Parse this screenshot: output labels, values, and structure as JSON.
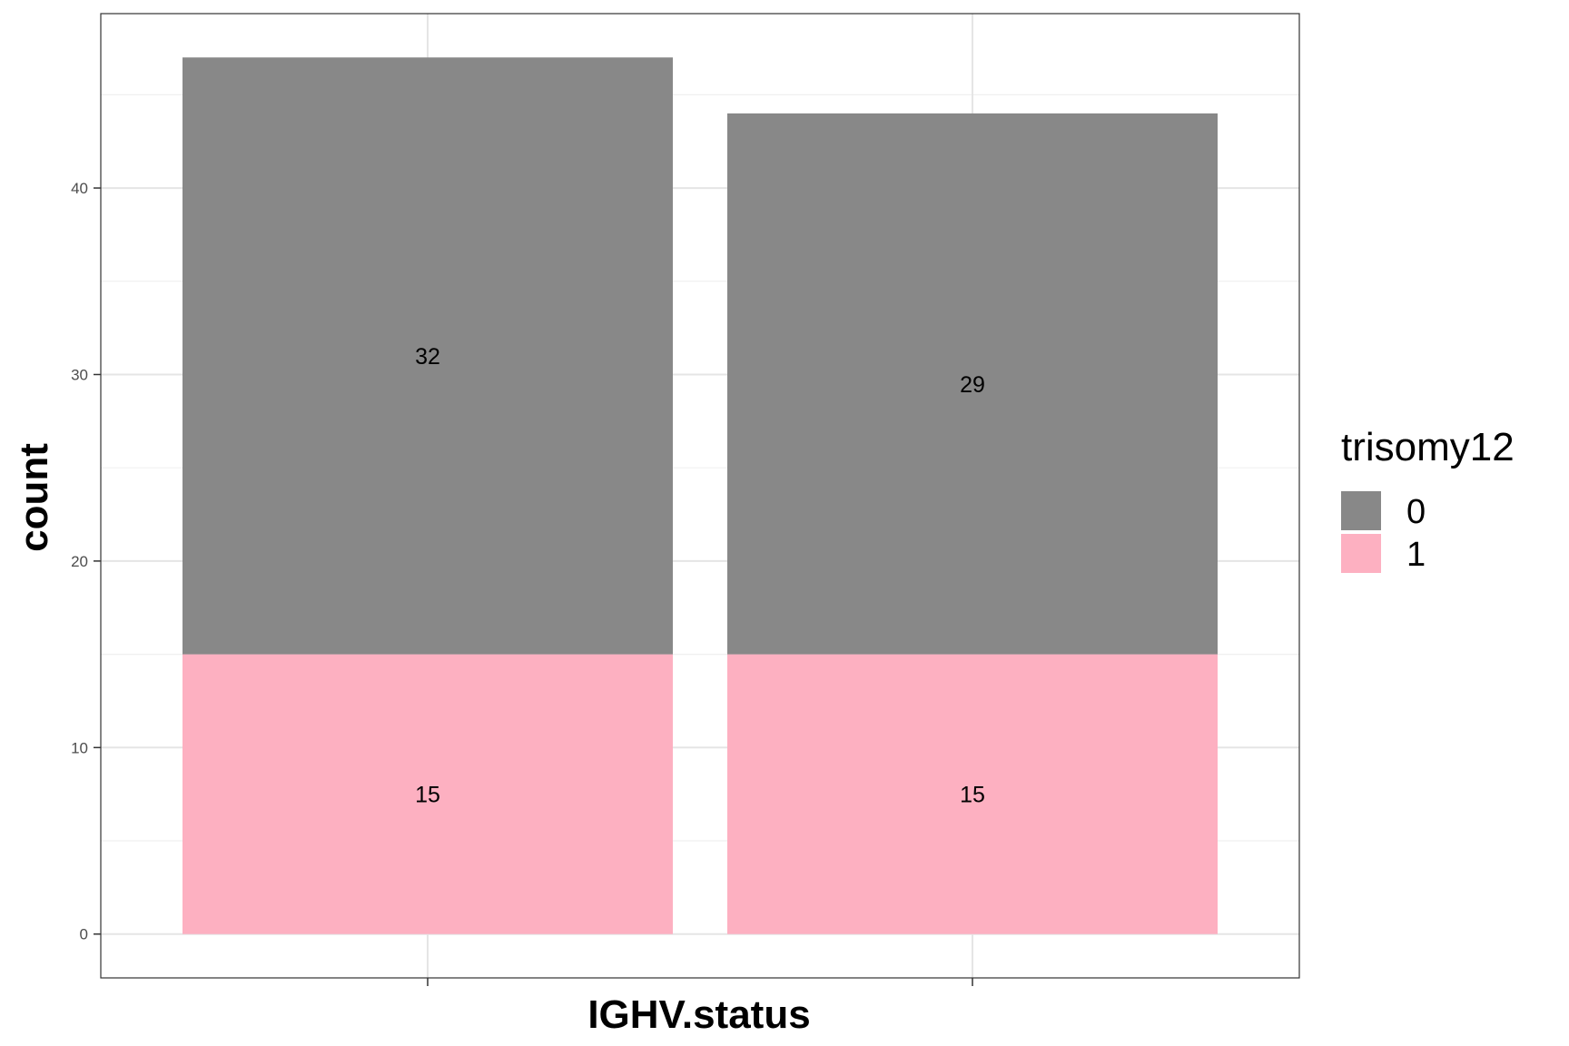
{
  "chart_data": {
    "type": "bar",
    "stacked": true,
    "categories": [
      "",
      ""
    ],
    "series": [
      {
        "name": "1",
        "values": [
          15,
          15
        ],
        "color": "#FDB0C1"
      },
      {
        "name": "0",
        "values": [
          32,
          29
        ],
        "color": "#888888"
      }
    ],
    "xlabel": "IGHV.status",
    "ylabel": "count",
    "ylim": [
      -2.35,
      49.35
    ],
    "yticks": [
      0,
      10,
      20,
      30,
      40
    ],
    "grid": true,
    "legend": {
      "title": "trisomy12",
      "position": "right",
      "entries": [
        {
          "label": "0",
          "color": "#888888"
        },
        {
          "label": "1",
          "color": "#FDB0C1"
        }
      ]
    },
    "colors": {
      "panel_border": "#333333",
      "grid_major": "#e5e5e5",
      "grid_minor": "#f0f0f0"
    }
  }
}
